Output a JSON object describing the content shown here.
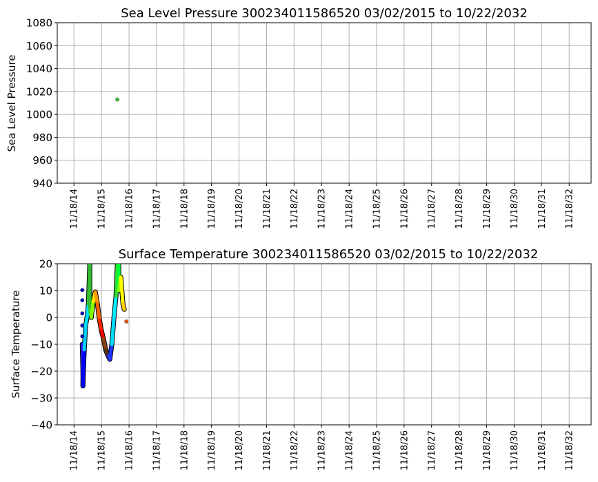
{
  "chart_data": [
    {
      "type": "scatter",
      "title": "Sea Level Pressure 300234011586520  03/02/2015 to 10/22/2032",
      "xlabel": "",
      "ylabel": "Sea Level Pressure",
      "ylim": [
        940,
        1080
      ],
      "yticks": [
        "940",
        "960",
        "980",
        "1000",
        "1020",
        "1040",
        "1060",
        "1080"
      ],
      "xlim": [
        "2014-04-10",
        "2033-09-05"
      ],
      "xticks": [
        "11/18/14",
        "11/18/15",
        "11/18/16",
        "11/18/17",
        "11/18/18",
        "11/18/19",
        "11/18/20",
        "11/18/21",
        "11/18/22",
        "11/18/23",
        "11/18/24",
        "11/18/25",
        "11/18/26",
        "11/18/27",
        "11/18/28",
        "11/18/29",
        "11/18/30",
        "11/18/31",
        "11/18/32"
      ],
      "grid": true,
      "points": [
        [
          "2016-06-16",
          1013,
          "#33cc33"
        ]
      ]
    },
    {
      "type": "scatter",
      "title": "Surface Temperature 300234011586520  03/02/2015 to 10/22/2032",
      "xlabel": "",
      "ylabel": "Surface Temperature",
      "ylim": [
        -40,
        20
      ],
      "yticks": [
        "−40",
        "−30",
        "−20",
        "−10",
        "0",
        "10",
        "20"
      ],
      "xlim": [
        "2014-04-10",
        "2033-09-05"
      ],
      "xticks": [
        "11/18/14",
        "11/18/15",
        "11/18/16",
        "11/18/17",
        "11/18/18",
        "11/18/19",
        "11/18/20",
        "11/18/21",
        "11/18/22",
        "11/18/23",
        "11/18/24",
        "11/18/25",
        "11/18/26",
        "11/18/27",
        "11/18/28",
        "11/18/29",
        "11/18/30",
        "11/18/31",
        "11/18/32"
      ],
      "grid": true,
      "track": [
        [
          "2015-03-08",
          -10,
          "#2222dd"
        ],
        [
          "2015-03-17",
          -20,
          "#0000ff"
        ],
        [
          "2015-03-17",
          -25.5,
          "#0000ff"
        ],
        [
          "2015-03-26",
          -18,
          "#0000ff"
        ],
        [
          "2015-04-04",
          -12,
          "#00ccff"
        ],
        [
          "2015-04-22",
          -3,
          "#00ddff"
        ],
        [
          "2015-05-10",
          0,
          "#00ddff"
        ],
        [
          "2015-05-29",
          5,
          "#33cc33"
        ],
        [
          "2015-06-16",
          20,
          "#33bb33"
        ],
        [
          "2015-06-16",
          3,
          "#33cc33"
        ],
        [
          "2015-07-05",
          0,
          "#88ff00"
        ],
        [
          "2015-08-01",
          6,
          "#ffee00"
        ],
        [
          "2015-08-29",
          9.5,
          "#ff9900"
        ],
        [
          "2015-09-25",
          5,
          "#ff6600"
        ],
        [
          "2015-10-23",
          -1,
          "#ff2200"
        ],
        [
          "2015-11-18",
          -5,
          "#ee0000"
        ],
        [
          "2015-12-16",
          -8,
          "#8b4513"
        ],
        [
          "2016-01-12",
          -12,
          "#553311"
        ],
        [
          "2016-02-09",
          -14,
          "#333399"
        ],
        [
          "2016-03-08",
          -15.6,
          "#2233ff"
        ],
        [
          "2016-04-04",
          -10,
          "#00ddff"
        ],
        [
          "2016-05-02",
          0,
          "#00eeff"
        ],
        [
          "2016-05-29",
          8,
          "#33dd33"
        ],
        [
          "2016-06-16",
          20,
          "#22cc22"
        ],
        [
          "2016-07-05",
          20,
          "#00ff33"
        ],
        [
          "2016-07-05",
          10,
          "#88ff00"
        ],
        [
          "2016-08-01",
          15,
          "#ffff00"
        ],
        [
          "2016-08-29",
          5,
          "#ffcc00"
        ],
        [
          "2016-09-16",
          3,
          "#ff9900"
        ]
      ],
      "points": [
        [
          "2015-03-08",
          10.2,
          "#0000cc"
        ],
        [
          "2015-03-08",
          6.4,
          "#0000cc"
        ],
        [
          "2015-03-08",
          1.5,
          "#0000cc"
        ],
        [
          "2015-03-08",
          -3,
          "#0000cc"
        ],
        [
          "2015-03-08",
          -7,
          "#0000cc"
        ],
        [
          "2016-10-14",
          -1.5,
          "#ff5500"
        ]
      ]
    }
  ]
}
